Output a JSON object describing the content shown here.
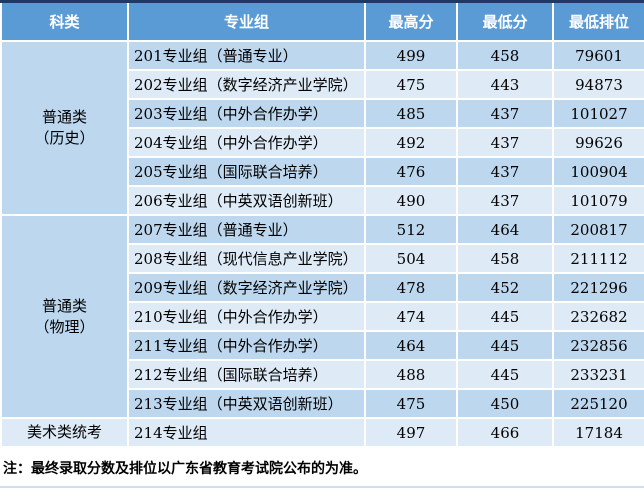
{
  "colors": {
    "header_bg": "#5B9BD5",
    "header_text": "#FFFFFF",
    "top_border": "#1F3864",
    "row_dark": "#BDD7EE",
    "row_light": "#DEEBF7",
    "grid_line": "#FFFFFF",
    "body_text": "#000000"
  },
  "chart_data": {
    "type": "table",
    "columns": [
      "科类",
      "专业组",
      "最高分",
      "最低分",
      "最低排位"
    ],
    "categories": [
      {
        "label": "普通类\n（历史）",
        "rowspan": 6
      },
      {
        "label": "普通类\n（物理）",
        "rowspan": 7
      },
      {
        "label": "美术类统考",
        "rowspan": 1
      }
    ],
    "rows": [
      {
        "group": "201专业组（普通专业）",
        "max": "499",
        "min": "458",
        "rank": "79601"
      },
      {
        "group": "202专业组（数字经济产业学院）",
        "max": "475",
        "min": "443",
        "rank": "94873"
      },
      {
        "group": "203专业组（中外合作办学）",
        "max": "485",
        "min": "437",
        "rank": "101027"
      },
      {
        "group": "204专业组（中外合作办学）",
        "max": "492",
        "min": "437",
        "rank": "99626"
      },
      {
        "group": "205专业组（国际联合培养）",
        "max": "476",
        "min": "437",
        "rank": "100904"
      },
      {
        "group": "206专业组（中英双语创新班）",
        "max": "490",
        "min": "437",
        "rank": "101079"
      },
      {
        "group": "207专业组（普通专业）",
        "max": "512",
        "min": "464",
        "rank": "200817"
      },
      {
        "group": "208专业组（现代信息产业学院）",
        "max": "504",
        "min": "458",
        "rank": "211112"
      },
      {
        "group": "209专业组（数字经济产业学院）",
        "max": "478",
        "min": "452",
        "rank": "221296"
      },
      {
        "group": "210专业组（中外合作办学）",
        "max": "474",
        "min": "445",
        "rank": "232682"
      },
      {
        "group": "211专业组（中外合作办学）",
        "max": "464",
        "min": "445",
        "rank": "232856"
      },
      {
        "group": "212专业组（国际联合培养）",
        "max": "488",
        "min": "445",
        "rank": "233231"
      },
      {
        "group": "213专业组（中英双语创新班）",
        "max": "475",
        "min": "450",
        "rank": "225120"
      },
      {
        "group": "214专业组",
        "max": "497",
        "min": "466",
        "rank": "17184"
      }
    ],
    "footnote": "注：最终录取分数及排位以广东省教育考试院公布的为准。"
  }
}
